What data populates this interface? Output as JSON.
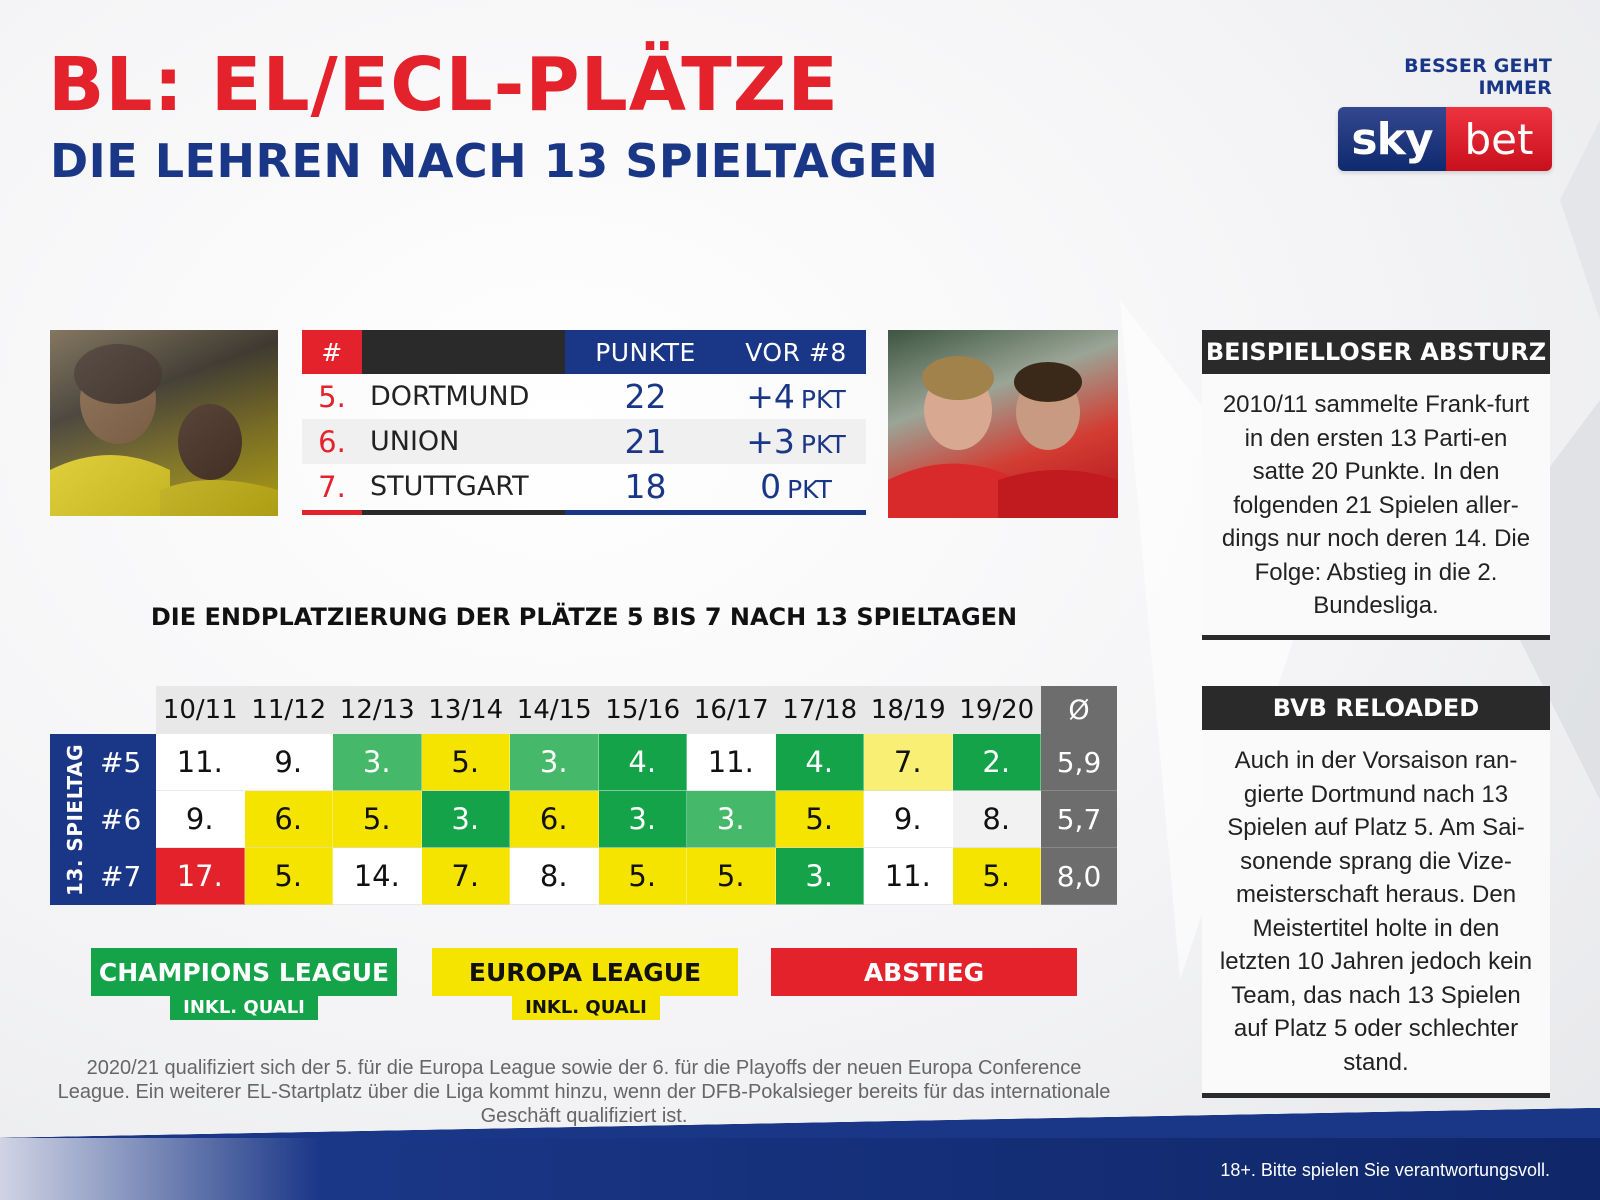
{
  "header": {
    "title": "BL: EL/ECL-PLÄTZE",
    "subtitle": "DIE LEHREN NACH 13 SPIELTAGEN"
  },
  "brand": {
    "tagline": "BESSER GEHT IMMER",
    "logo_left": "sky",
    "logo_right": "bet"
  },
  "colors": {
    "red": "#e3222b",
    "navy": "#1a3787",
    "dark": "#2a2a2a",
    "green_strong": "#15a34a",
    "green_light": "#46b86a",
    "yellow_strong": "#f4e400",
    "yellow_light": "#f8ef74",
    "avg_grey": "#6d6d6d"
  },
  "standings": {
    "headers": {
      "rank": "#",
      "points": "PUNKTE",
      "lead": "VOR #8"
    },
    "rows": [
      {
        "rank": "5.",
        "team": "DORTMUND",
        "points": "22",
        "lead": "+4",
        "unit": "PKT"
      },
      {
        "rank": "6.",
        "team": "UNION",
        "points": "21",
        "lead": "+3",
        "unit": "PKT"
      },
      {
        "rank": "7.",
        "team": "STUTTGART",
        "points": "18",
        "lead": "0",
        "unit": "PKT"
      }
    ]
  },
  "matrix": {
    "title": "DIE ENDPLATZIERUNG DER PLÄTZE 5 BIS 7 NACH 13 SPIELTAGEN",
    "side_label": "13. SPIELTAG",
    "columns": [
      "10/11",
      "11/12",
      "12/13",
      "13/14",
      "14/15",
      "15/16",
      "16/17",
      "17/18",
      "18/19",
      "19/20"
    ],
    "avg_header": "Ø",
    "rows": [
      {
        "label": "#5",
        "cells": [
          {
            "v": "11.",
            "c": "white"
          },
          {
            "v": "9.",
            "c": "white"
          },
          {
            "v": "3.",
            "c": "green_light"
          },
          {
            "v": "5.",
            "c": "yellow_strong"
          },
          {
            "v": "3.",
            "c": "green_light"
          },
          {
            "v": "4.",
            "c": "green_strong"
          },
          {
            "v": "11.",
            "c": "white"
          },
          {
            "v": "4.",
            "c": "green_strong"
          },
          {
            "v": "7.",
            "c": "yellow_light"
          },
          {
            "v": "2.",
            "c": "green_strong"
          }
        ],
        "avg": "5,9"
      },
      {
        "label": "#6",
        "cells": [
          {
            "v": "9.",
            "c": "white"
          },
          {
            "v": "6.",
            "c": "yellow_strong"
          },
          {
            "v": "5.",
            "c": "yellow_strong"
          },
          {
            "v": "3.",
            "c": "green_strong"
          },
          {
            "v": "6.",
            "c": "yellow_strong"
          },
          {
            "v": "3.",
            "c": "green_strong"
          },
          {
            "v": "3.",
            "c": "green_light"
          },
          {
            "v": "5.",
            "c": "yellow_strong"
          },
          {
            "v": "9.",
            "c": "white"
          },
          {
            "v": "8.",
            "c": "grey_light"
          }
        ],
        "avg": "5,7"
      },
      {
        "label": "#7",
        "cells": [
          {
            "v": "17.",
            "c": "red"
          },
          {
            "v": "5.",
            "c": "yellow_strong"
          },
          {
            "v": "14.",
            "c": "white"
          },
          {
            "v": "7.",
            "c": "yellow_strong"
          },
          {
            "v": "8.",
            "c": "white"
          },
          {
            "v": "5.",
            "c": "yellow_strong"
          },
          {
            "v": "5.",
            "c": "yellow_strong"
          },
          {
            "v": "3.",
            "c": "green_strong"
          },
          {
            "v": "11.",
            "c": "white"
          },
          {
            "v": "5.",
            "c": "yellow_strong"
          }
        ],
        "avg": "8,0"
      }
    ]
  },
  "legend": {
    "cl": "CHAMPIONS LEAGUE",
    "cl_sub": "INKL. QUALI",
    "el": "EUROPA LEAGUE",
    "el_sub": "INKL. QUALI",
    "abstieg": "ABSTIEG"
  },
  "footnote": "2020/21 qualifiziert sich der 5. für die Europa League sowie der 6. für die Playoffs der neuen Europa Conference League. Ein weiterer EL-Startplatz über die Liga kommt hinzu, wenn der DFB-Pokalsieger bereits für das internationale Geschäft qualifiziert ist.",
  "sidebar": {
    "box1": {
      "title": "BEISPIELLOSER ABSTURZ",
      "text": "2010/11 sammelte Frank-furt in den ersten 13 Parti-en satte 20 Punkte. In den folgenden 21 Spielen aller-dings nur noch deren 14. Die Folge: Abstieg in die 2. Bundesliga."
    },
    "box2": {
      "title": "BVB RELOADED",
      "text": "Auch in der Vorsaison ran-gierte Dortmund nach 13 Spielen auf Platz 5. Am Sai-sonende sprang die Vize-meisterschaft heraus. Den Meistertitel holte in den letzten 10 Jahren jedoch kein Team, das nach 13 Spielen auf Platz 5 oder schlechter stand."
    }
  },
  "disclaimer": "18+. Bitte spielen Sie verantwortungsvoll."
}
